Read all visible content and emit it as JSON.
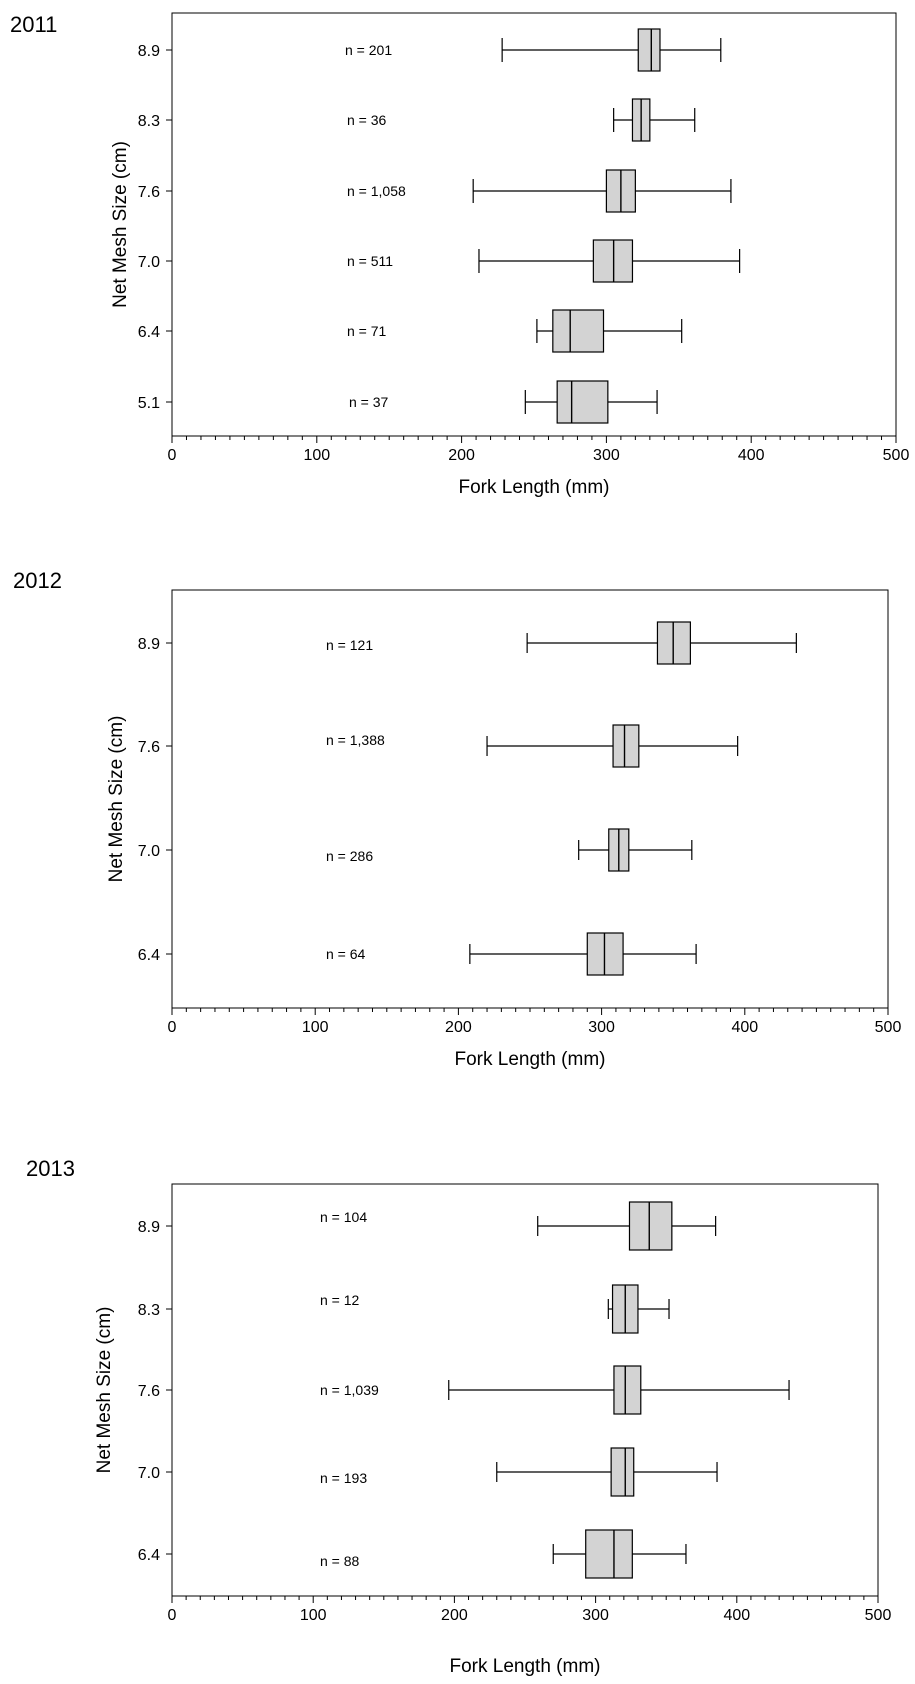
{
  "chart_data": [
    {
      "type": "boxplot",
      "title": "2011",
      "xlabel": "Fork Length (mm)",
      "ylabel": "Net Mesh Size (cm)",
      "xlim": [
        0,
        500
      ],
      "xticks": [
        0,
        100,
        200,
        300,
        400,
        500
      ],
      "grid": false,
      "categories": [
        "8.9",
        "8.3",
        "7.6",
        "7.0",
        "6.4",
        "5.1"
      ],
      "series": [
        {
          "category": "8.9",
          "n_label": "n = 201",
          "min": 228,
          "q1": 322,
          "median": 331,
          "q3": 337,
          "max": 379
        },
        {
          "category": "8.3",
          "n_label": "n = 36",
          "min": 305,
          "q1": 318,
          "median": 324,
          "q3": 330,
          "max": 361
        },
        {
          "category": "7.6",
          "n_label": "n = 1,058",
          "min": 208,
          "q1": 300,
          "median": 310,
          "q3": 320,
          "max": 386
        },
        {
          "category": "7.0",
          "n_label": "n = 511",
          "min": 212,
          "q1": 291,
          "median": 305,
          "q3": 318,
          "max": 392
        },
        {
          "category": "6.4",
          "n_label": "n = 71",
          "min": 252,
          "q1": 263,
          "median": 275,
          "q3": 298,
          "max": 352
        },
        {
          "category": "5.1",
          "n_label": "n = 37",
          "min": 244,
          "q1": 266,
          "median": 276,
          "q3": 301,
          "max": 335
        }
      ]
    },
    {
      "type": "boxplot",
      "title": "2012",
      "xlabel": "Fork Length (mm)",
      "ylabel": "Net Mesh Size (cm)",
      "xlim": [
        0,
        500
      ],
      "xticks": [
        0,
        100,
        200,
        300,
        400,
        500
      ],
      "grid": false,
      "categories": [
        "8.9",
        "7.6",
        "7.0",
        "6.4"
      ],
      "series": [
        {
          "category": "8.9",
          "n_label": "n = 121",
          "min": 248,
          "q1": 339,
          "median": 350,
          "q3": 362,
          "max": 436
        },
        {
          "category": "7.6",
          "n_label": "n = 1,388",
          "min": 220,
          "q1": 308,
          "median": 316,
          "q3": 326,
          "max": 395
        },
        {
          "category": "7.0",
          "n_label": "n = 286",
          "min": 284,
          "q1": 305,
          "median": 312,
          "q3": 319,
          "max": 363
        },
        {
          "category": "6.4",
          "n_label": "n = 64",
          "min": 208,
          "q1": 290,
          "median": 302,
          "q3": 315,
          "max": 366
        }
      ]
    },
    {
      "type": "boxplot",
      "title": "2013",
      "xlabel": "Fork Length (mm)",
      "ylabel": "Net Mesh Size (cm)",
      "xlim": [
        0,
        500
      ],
      "xticks": [
        0,
        100,
        200,
        300,
        400,
        500
      ],
      "grid": false,
      "categories": [
        "8.9",
        "8.3",
        "7.6",
        "7.0",
        "6.4"
      ],
      "series": [
        {
          "category": "8.9",
          "n_label": "n = 104",
          "min": 259,
          "q1": 324,
          "median": 338,
          "q3": 354,
          "max": 385
        },
        {
          "category": "8.3",
          "n_label": "n = 12",
          "min": 309,
          "q1": 312,
          "median": 321,
          "q3": 330,
          "max": 352
        },
        {
          "category": "7.6",
          "n_label": "n = 1,039",
          "min": 196,
          "q1": 313,
          "median": 321,
          "q3": 332,
          "max": 437
        },
        {
          "category": "7.0",
          "n_label": "n = 193",
          "min": 230,
          "q1": 311,
          "median": 321,
          "q3": 327,
          "max": 386
        },
        {
          "category": "6.4",
          "n_label": "n = 88",
          "min": 270,
          "q1": 293,
          "median": 313,
          "q3": 326,
          "max": 364
        }
      ]
    }
  ]
}
